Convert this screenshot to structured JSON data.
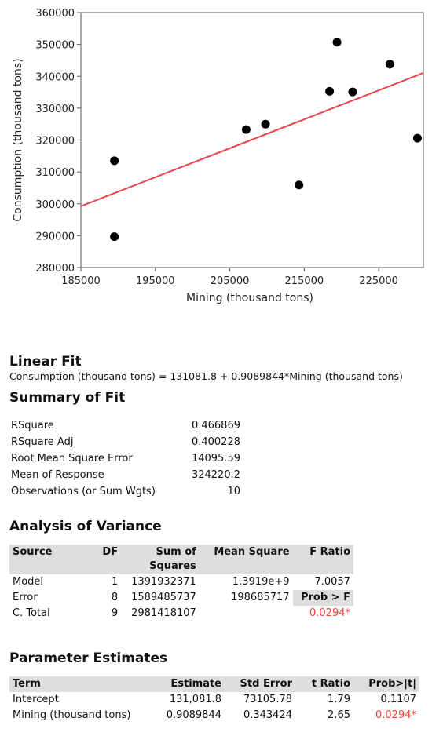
{
  "chart_data": {
    "type": "scatter",
    "xlabel": "Mining (thousand tons)",
    "ylabel": "Consumption (thousand tons)",
    "xlim": [
      185000,
      231000
    ],
    "ylim": [
      280000,
      360000
    ],
    "xticks": [
      "185000",
      "195000",
      "205000",
      "215000",
      "225000"
    ],
    "xtick_values": [
      185000,
      195000,
      205000,
      215000,
      225000
    ],
    "yticks": [
      "280000",
      "290000",
      "300000",
      "310000",
      "320000",
      "330000",
      "340000",
      "350000",
      "360000"
    ],
    "ytick_values": [
      280000,
      290000,
      300000,
      310000,
      320000,
      330000,
      340000,
      350000,
      360000
    ],
    "points": [
      {
        "x": 189500,
        "y": 313500
      },
      {
        "x": 189500,
        "y": 289700
      },
      {
        "x": 207200,
        "y": 323300
      },
      {
        "x": 209800,
        "y": 325000
      },
      {
        "x": 214300,
        "y": 305900
      },
      {
        "x": 218400,
        "y": 335300
      },
      {
        "x": 219400,
        "y": 350700
      },
      {
        "x": 221500,
        "y": 335100
      },
      {
        "x": 226500,
        "y": 343800
      },
      {
        "x": 230200,
        "y": 320600
      }
    ],
    "fit_line": {
      "intercept": 131081.8,
      "slope": 0.9089844,
      "color": "#e8454f"
    },
    "point_color": "#000000"
  },
  "linear_fit": {
    "title": "Linear Fit",
    "equation": "Consumption (thousand tons) = 131081.8 + 0.9089844*Mining (thousand tons)"
  },
  "summary_of_fit": {
    "title": "Summary of Fit",
    "rows": [
      {
        "label": "RSquare",
        "value": "0.466869"
      },
      {
        "label": "RSquare Adj",
        "value": "0.400228"
      },
      {
        "label": "Root Mean Square Error",
        "value": "14095.59"
      },
      {
        "label": "Mean of Response",
        "value": "324220.2"
      },
      {
        "label": "Observations (or Sum Wgts)",
        "value": "10"
      }
    ]
  },
  "anova": {
    "title": "Analysis of Variance",
    "headers": {
      "source": "Source",
      "df": "DF",
      "ss_line1": "Sum of",
      "ss_line2": "Squares",
      "ms": "Mean Square",
      "f": "F Ratio"
    },
    "rows": [
      {
        "source": "Model",
        "df": "1",
        "ss": "1391932371",
        "ms": "1.3919e+9",
        "f": "7.0057"
      },
      {
        "source": "Error",
        "df": "8",
        "ss": "1589485737",
        "ms": "198685717",
        "f": "Prob > F"
      },
      {
        "source": "C. Total",
        "df": "9",
        "ss": "2981418107",
        "ms": "",
        "f": "0.0294*"
      }
    ]
  },
  "parameter_estimates": {
    "title": "Parameter Estimates",
    "headers": {
      "term": "Term",
      "estimate": "Estimate",
      "std_error": "Std Error",
      "t_ratio": "t Ratio",
      "prob": "Prob>|t|"
    },
    "rows": [
      {
        "term": "Intercept",
        "estimate": "131,081.8",
        "std_error": "73105.78",
        "t_ratio": "1.79",
        "prob": "0.1107"
      },
      {
        "term": "Mining (thousand tons)",
        "estimate": "0.9089844",
        "std_error": "0.343424",
        "t_ratio": "2.65",
        "prob": "0.0294*"
      }
    ]
  }
}
